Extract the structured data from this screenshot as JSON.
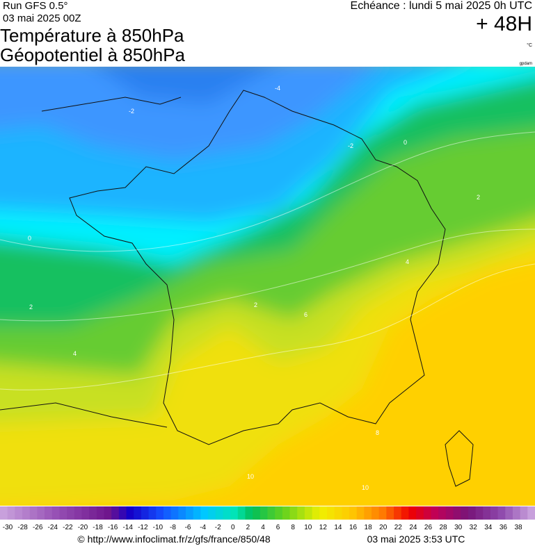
{
  "header": {
    "run": "Run GFS 0.5°",
    "run_date": "03 mai 2025 00Z",
    "title1": "Température à 850hPa",
    "title2": "Géopotentiel à 850hPa",
    "echeance": "Echéance : lundi 5 mai 2025 0h UTC",
    "lead": "+ 48H",
    "unit": "°C",
    "credit": "gpdam"
  },
  "contour_labels": [
    "-4",
    "-2",
    "0",
    "-2",
    "2",
    "0",
    "2",
    "4",
    "2",
    "4",
    "6",
    "8",
    "10",
    "10"
  ],
  "colorbar": {
    "labels": [
      -30,
      -28,
      -26,
      -24,
      -22,
      -20,
      -18,
      -16,
      -14,
      -12,
      -10,
      -8,
      -6,
      -4,
      -2,
      0,
      2,
      4,
      6,
      8,
      10,
      12,
      14,
      16,
      18,
      20,
      22,
      24,
      26,
      28,
      30,
      32,
      34,
      36,
      38
    ]
  },
  "footer": {
    "url": "© http://www.infoclimat.fr/z/gfs/france/850/48",
    "date": "03 mai 2025  3:53 UTC"
  }
}
